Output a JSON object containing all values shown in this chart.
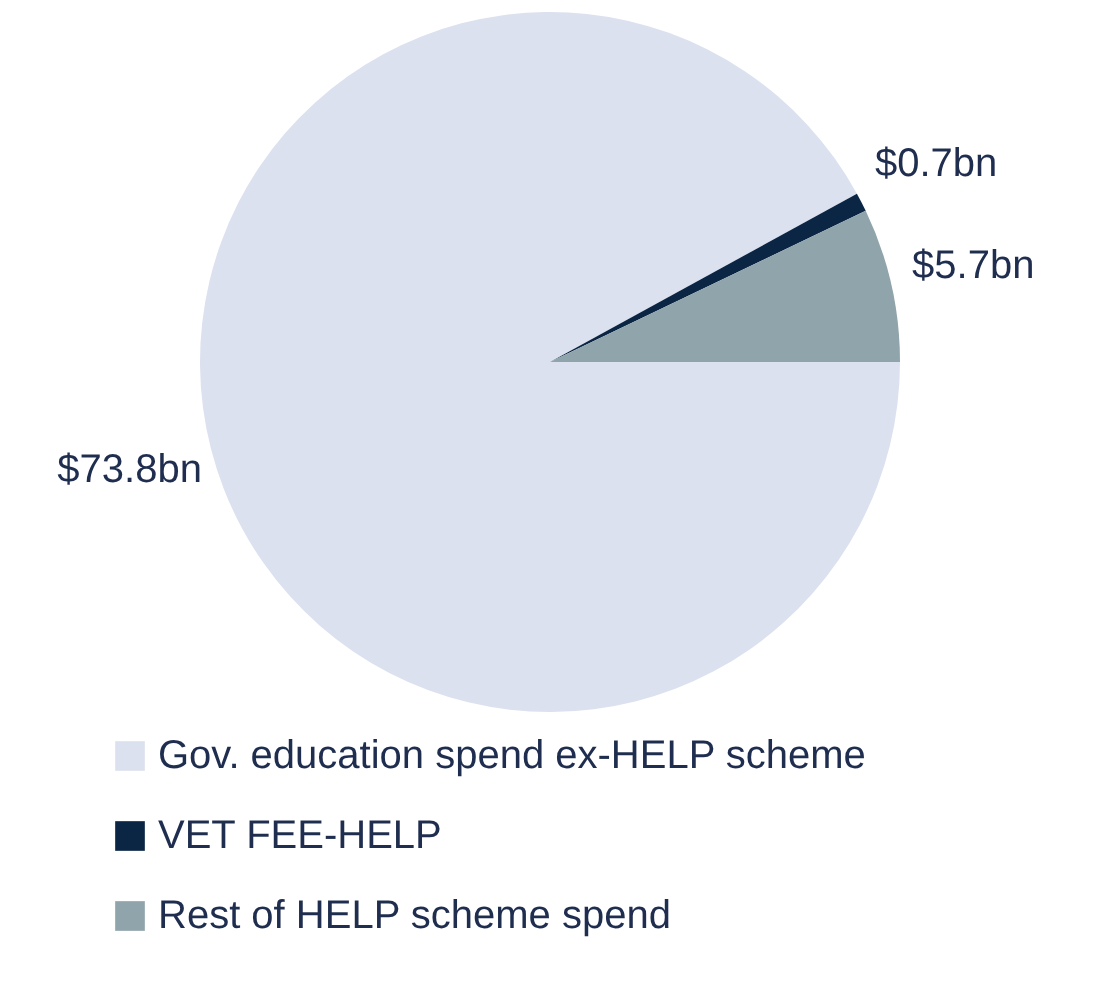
{
  "chart_data": {
    "type": "pie",
    "categories": [
      "Gov. education spend ex-HELP scheme",
      "VET FEE-HELP",
      "Rest of HELP scheme spend"
    ],
    "values": [
      73.8,
      0.7,
      5.7
    ],
    "value_labels": [
      "$73.8bn",
      "$0.7bn",
      "$5.7bn"
    ],
    "colors": [
      "#dce1ef",
      "#0b2545",
      "#90a4ab"
    ],
    "legend": "bottom"
  }
}
